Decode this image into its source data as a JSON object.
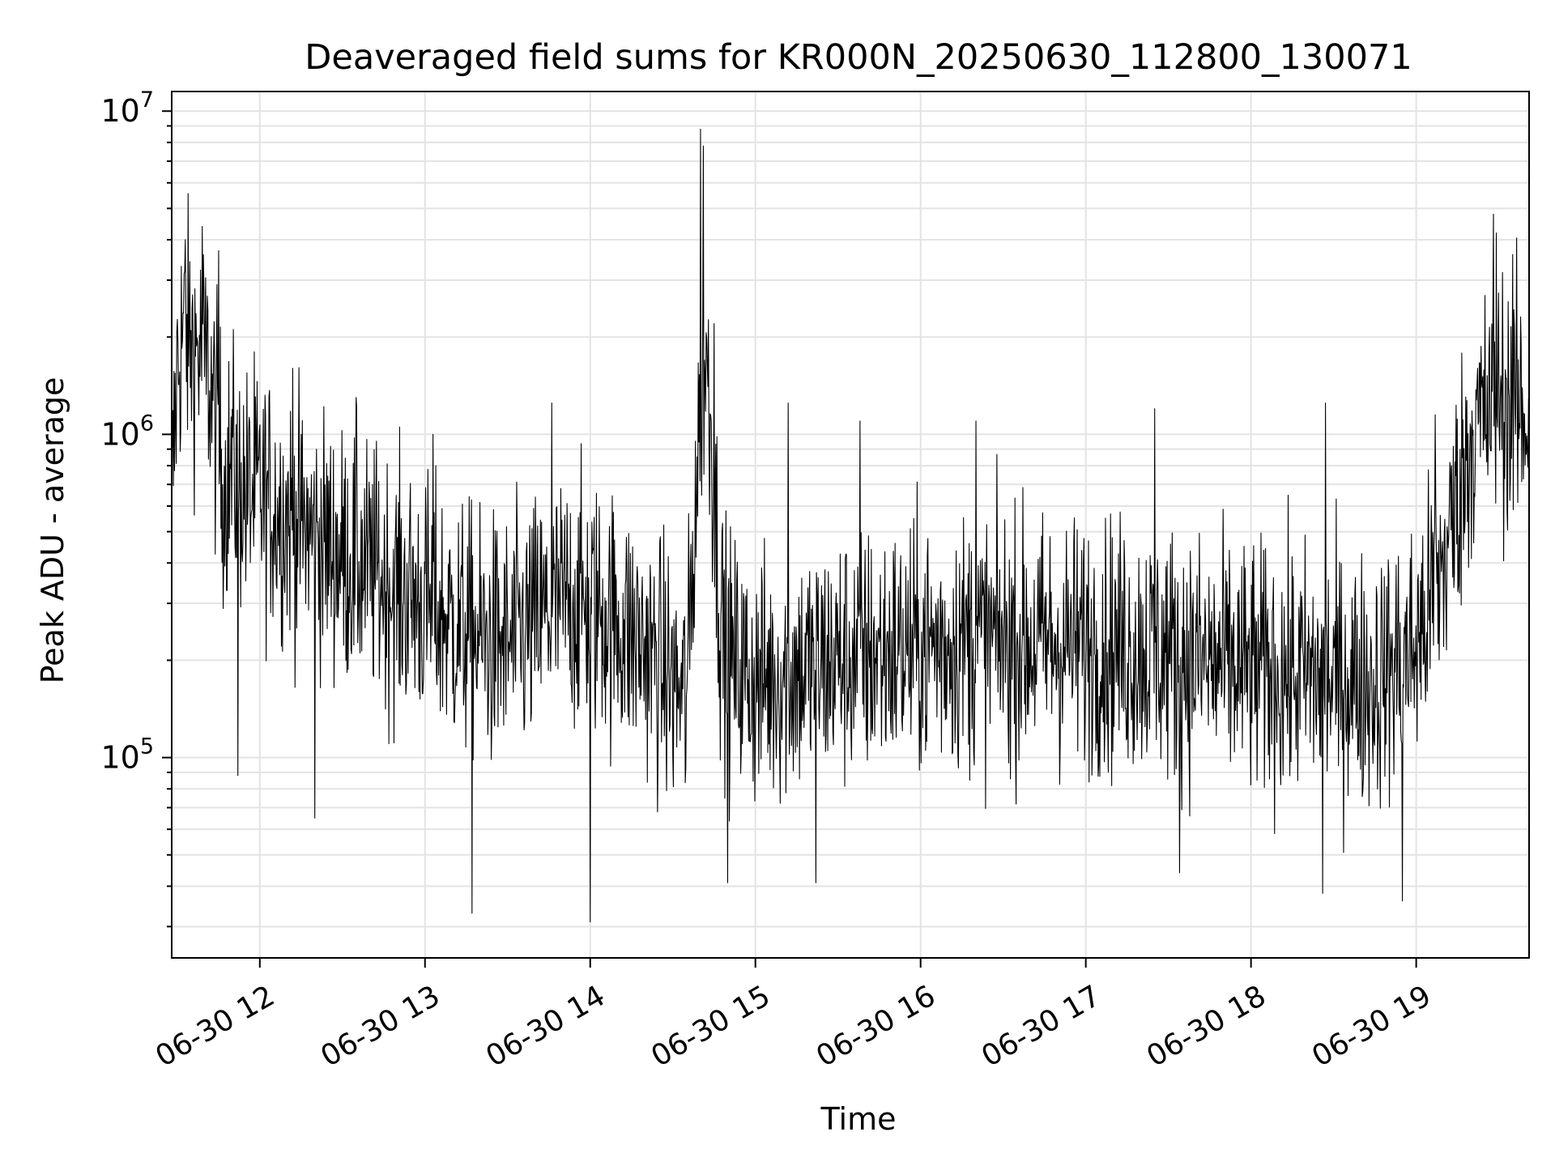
{
  "chart_data": {
    "type": "line",
    "title": "Deaveraged field sums for KR000N_20250630_112800_130071",
    "xlabel": "Time",
    "ylabel": "Peak ADU - average",
    "yscale": "log",
    "grid": true,
    "xlim": [
      "2025-06-30 11:28",
      "2025-06-30 19:41"
    ],
    "ylim": [
      24000,
      11500000
    ],
    "x_ticks": [
      {
        "t": "2025-06-30 12:00",
        "label": "06-30 12"
      },
      {
        "t": "2025-06-30 13:00",
        "label": "06-30 13"
      },
      {
        "t": "2025-06-30 14:00",
        "label": "06-30 14"
      },
      {
        "t": "2025-06-30 15:00",
        "label": "06-30 15"
      },
      {
        "t": "2025-06-30 16:00",
        "label": "06-30 16"
      },
      {
        "t": "2025-06-30 17:00",
        "label": "06-30 17"
      },
      {
        "t": "2025-06-30 18:00",
        "label": "06-30 18"
      },
      {
        "t": "2025-06-30 19:00",
        "label": "06-30 19"
      }
    ],
    "y_ticks": [
      {
        "value": 100000,
        "base": "10",
        "exp": "5"
      },
      {
        "value": 1000000,
        "base": "10",
        "exp": "6"
      },
      {
        "value": 10000000,
        "base": "10",
        "exp": "7"
      }
    ],
    "line_color": "#000000",
    "series": [
      {
        "points": [
          [
            "2025-06-30 11:28",
            600000
          ],
          [
            "2025-06-30 11:30",
            1600000
          ],
          [
            "2025-06-30 11:32",
            2100000
          ],
          [
            "2025-06-30 11:35",
            1900000
          ],
          [
            "2025-06-30 11:38",
            1800000
          ],
          [
            "2025-06-30 11:41",
            1600000
          ],
          [
            "2025-06-30 11:44",
            1100000
          ],
          [
            "2025-06-30 11:47",
            700000
          ],
          [
            "2025-06-30 11:50",
            800000
          ],
          [
            "2025-06-30 11:55",
            650000
          ],
          [
            "2025-06-30 12:00",
            650000
          ],
          [
            "2025-06-30 12:05",
            600000
          ],
          [
            "2025-06-30 12:10",
            560000
          ],
          [
            "2025-06-30 12:15",
            520000
          ],
          [
            "2025-06-30 12:20",
            480000
          ],
          [
            "2025-06-30 12:25",
            450000
          ],
          [
            "2025-06-30 12:30",
            420000
          ],
          [
            "2025-06-30 12:40",
            380000
          ],
          [
            "2025-06-30 12:50",
            330000
          ],
          [
            "2025-06-30 13:00",
            300000
          ],
          [
            "2025-06-30 13:10",
            260000
          ],
          [
            "2025-06-30 13:20",
            230000
          ],
          [
            "2025-06-30 13:30",
            220000
          ],
          [
            "2025-06-30 13:40",
            260000
          ],
          [
            "2025-06-30 13:50",
            300000
          ],
          [
            "2025-06-30 14:00",
            300000
          ],
          [
            "2025-06-30 14:10",
            260000
          ],
          [
            "2025-06-30 14:20",
            220000
          ],
          [
            "2025-06-30 14:30",
            170000
          ],
          [
            "2025-06-30 14:35",
            150000
          ],
          [
            "2025-06-30 14:40",
            1300000
          ],
          [
            "2025-06-30 14:42",
            1800000
          ],
          [
            "2025-06-30 14:44",
            1000000
          ],
          [
            "2025-06-30 14:47",
            300000
          ],
          [
            "2025-06-30 14:50",
            200000
          ],
          [
            "2025-06-30 15:00",
            170000
          ],
          [
            "2025-06-30 15:10",
            180000
          ],
          [
            "2025-06-30 15:20",
            190000
          ],
          [
            "2025-06-30 15:30",
            200000
          ],
          [
            "2025-06-30 15:45",
            210000
          ],
          [
            "2025-06-30 16:00",
            220000
          ],
          [
            "2025-06-30 16:15",
            230000
          ],
          [
            "2025-06-30 16:30",
            230000
          ],
          [
            "2025-06-30 16:45",
            225000
          ],
          [
            "2025-06-30 17:00",
            225000
          ],
          [
            "2025-06-30 17:15",
            220000
          ],
          [
            "2025-06-30 17:30",
            210000
          ],
          [
            "2025-06-30 17:45",
            195000
          ],
          [
            "2025-06-30 18:00",
            185000
          ],
          [
            "2025-06-30 18:15",
            180000
          ],
          [
            "2025-06-30 18:30",
            175000
          ],
          [
            "2025-06-30 18:45",
            170000
          ],
          [
            "2025-06-30 19:00",
            220000
          ],
          [
            "2025-06-30 19:10",
            400000
          ],
          [
            "2025-06-30 19:20",
            1000000
          ],
          [
            "2025-06-30 19:30",
            1300000
          ],
          [
            "2025-06-30 19:41",
            1100000
          ]
        ],
        "spikes": [
          [
            "2025-06-30 11:33",
            4000000
          ],
          [
            "2025-06-30 11:39",
            4400000
          ],
          [
            "2025-06-30 11:45",
            3700000
          ],
          [
            "2025-06-30 11:58",
            1800000
          ],
          [
            "2025-06-30 12:12",
            1600000
          ],
          [
            "2025-06-30 12:35",
            1300000
          ],
          [
            "2025-06-30 13:03",
            1000000
          ],
          [
            "2025-06-30 13:46",
            1250000
          ],
          [
            "2025-06-30 14:40",
            8800000
          ],
          [
            "2025-06-30 14:41",
            7800000
          ],
          [
            "2025-06-30 14:45",
            2200000
          ],
          [
            "2025-06-30 15:12",
            1250000
          ],
          [
            "2025-06-30 15:38",
            1100000
          ],
          [
            "2025-06-30 16:20",
            1100000
          ],
          [
            "2025-06-30 17:25",
            1200000
          ],
          [
            "2025-06-30 18:27",
            1250000
          ],
          [
            "2025-06-30 19:07",
            1150000
          ],
          [
            "2025-06-30 19:28",
            4800000
          ],
          [
            "2025-06-30 19:29",
            4200000
          ],
          [
            "2025-06-30 19:35",
            3600000
          ],
          [
            "2025-06-30 11:52",
            88000
          ],
          [
            "2025-06-30 12:20",
            65000
          ],
          [
            "2025-06-30 13:17",
            33000
          ],
          [
            "2025-06-30 14:00",
            31000
          ],
          [
            "2025-06-30 14:50",
            41000
          ],
          [
            "2025-06-30 15:22",
            41000
          ],
          [
            "2025-06-30 17:34",
            44000
          ],
          [
            "2025-06-30 18:26",
            38000
          ],
          [
            "2025-06-30 18:55",
            36000
          ]
        ]
      }
    ]
  }
}
